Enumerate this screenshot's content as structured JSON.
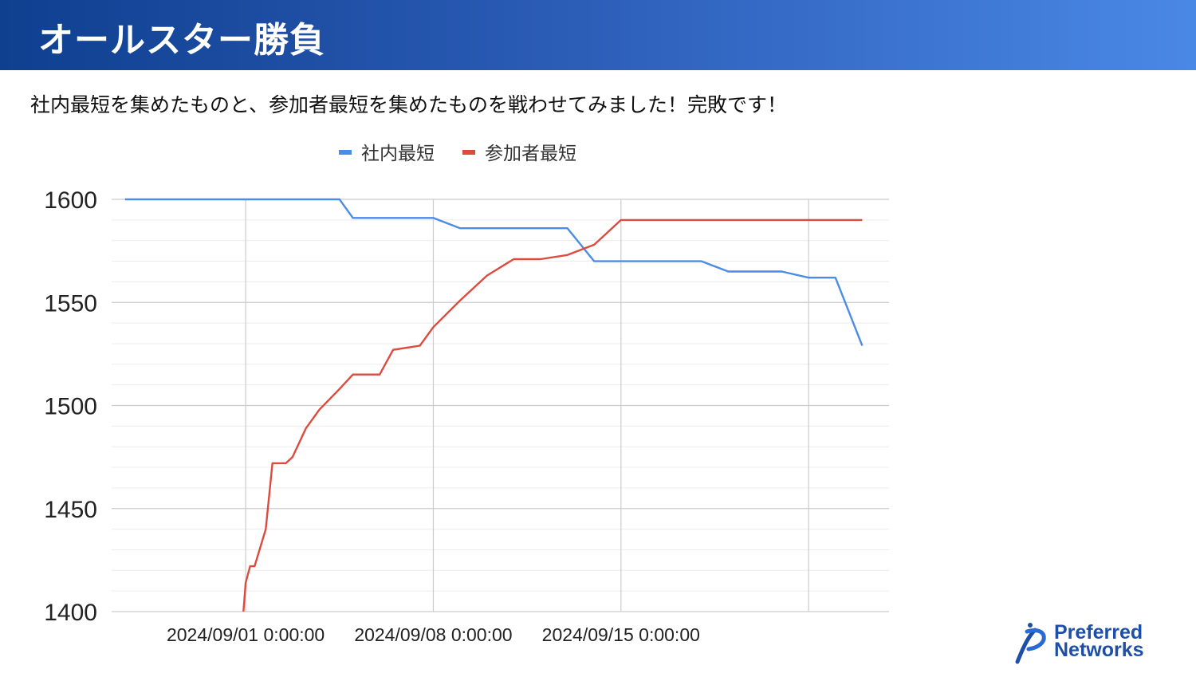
{
  "slide": {
    "title": "オールスター勝負",
    "subtitle": "社内最短を集めたものと、参加者最短を集めたものを戦わせてみました！完敗です！"
  },
  "logo": {
    "line1": "Preferred",
    "line2": "Networks",
    "color": "#1e4fa8"
  },
  "chart_data": {
    "type": "line",
    "title": "",
    "xlabel": "",
    "ylabel": "",
    "x_axis": {
      "type": "datetime",
      "range": [
        "2024-08-27T00:00",
        "2024-09-25T00:00"
      ],
      "tick_labels": [
        {
          "x": "2024-09-01T00:00",
          "label": "2024/09/01 0:00:00"
        },
        {
          "x": "2024-09-08T00:00",
          "label": "2024/09/08 0:00:00"
        },
        {
          "x": "2024-09-15T00:00",
          "label": "2024/09/15 0:00:00"
        },
        {
          "x": "2024-09-22T00:00",
          "label": ""
        }
      ]
    },
    "ylim": [
      1400,
      1600
    ],
    "y_ticks": [
      1400,
      1450,
      1500,
      1550,
      1600
    ],
    "y_minor_step": 10,
    "grid": true,
    "legend_position": "top",
    "series": [
      {
        "name": "社内最短",
        "color": "#4a8ce8",
        "points": [
          [
            "2024-08-27T12:00",
            1600
          ],
          [
            "2024-09-04T12:00",
            1600
          ],
          [
            "2024-09-05T00:00",
            1591
          ],
          [
            "2024-09-08T00:00",
            1591
          ],
          [
            "2024-09-09T00:00",
            1586
          ],
          [
            "2024-09-13T00:00",
            1586
          ],
          [
            "2024-09-14T00:00",
            1570
          ],
          [
            "2024-09-18T00:00",
            1570
          ],
          [
            "2024-09-19T00:00",
            1565
          ],
          [
            "2024-09-21T00:00",
            1565
          ],
          [
            "2024-09-22T00:00",
            1562
          ],
          [
            "2024-09-23T00:00",
            1562
          ],
          [
            "2024-09-24T00:00",
            1529
          ]
        ]
      },
      {
        "name": "参加者最短",
        "color": "#dd4b3e",
        "points": [
          [
            "2024-08-31T22:00",
            1400
          ],
          [
            "2024-09-01T00:00",
            1414
          ],
          [
            "2024-09-01T04:00",
            1422
          ],
          [
            "2024-09-01T08:00",
            1422
          ],
          [
            "2024-09-01T18:00",
            1440
          ],
          [
            "2024-09-02T00:00",
            1472
          ],
          [
            "2024-09-02T12:00",
            1472
          ],
          [
            "2024-09-02T18:00",
            1475
          ],
          [
            "2024-09-03T06:00",
            1489
          ],
          [
            "2024-09-03T18:00",
            1498
          ],
          [
            "2024-09-04T12:00",
            1508
          ],
          [
            "2024-09-05T00:00",
            1515
          ],
          [
            "2024-09-06T00:00",
            1515
          ],
          [
            "2024-09-06T12:00",
            1527
          ],
          [
            "2024-09-07T12:00",
            1529
          ],
          [
            "2024-09-08T00:00",
            1538
          ],
          [
            "2024-09-09T00:00",
            1551
          ],
          [
            "2024-09-10T00:00",
            1563
          ],
          [
            "2024-09-11T00:00",
            1571
          ],
          [
            "2024-09-12T00:00",
            1571
          ],
          [
            "2024-09-13T00:00",
            1573
          ],
          [
            "2024-09-14T00:00",
            1578
          ],
          [
            "2024-09-15T00:00",
            1590
          ],
          [
            "2024-09-24T00:00",
            1590
          ]
        ]
      }
    ]
  }
}
